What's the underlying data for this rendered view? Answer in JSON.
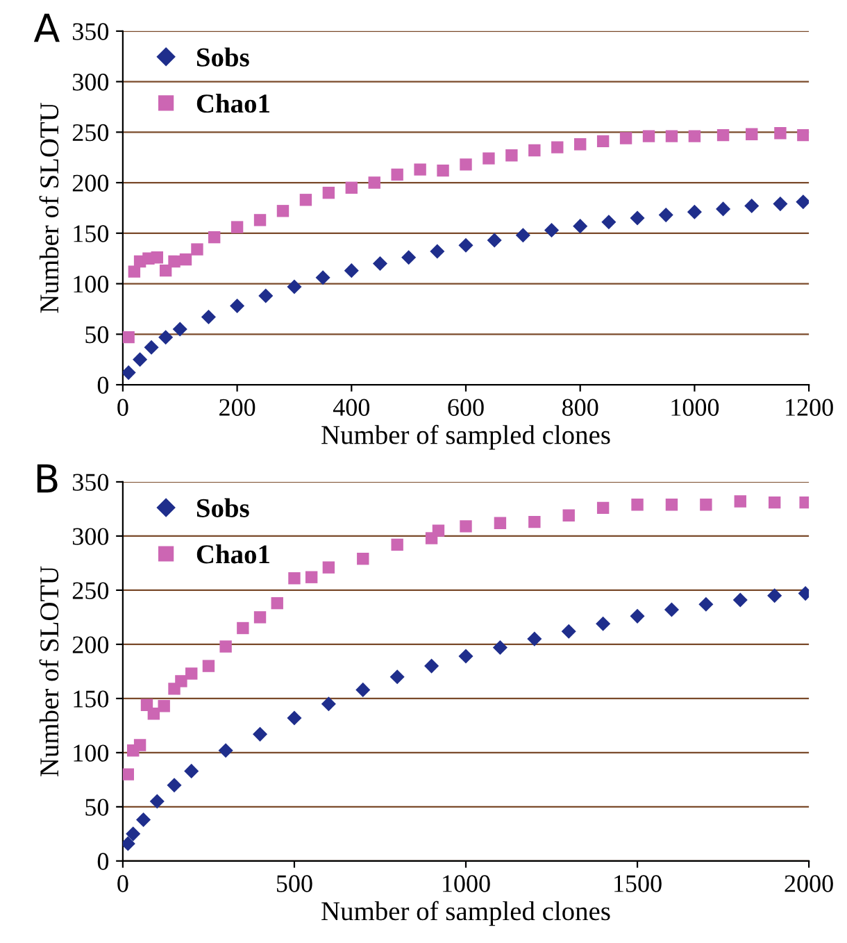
{
  "chart_data": [
    {
      "type": "scatter",
      "title": "A",
      "xlabel": "Number of sampled clones",
      "ylabel": "Number of SLOTU",
      "xlim": [
        0,
        1200
      ],
      "ylim": [
        0,
        350
      ],
      "xticks": [
        0,
        200,
        400,
        600,
        800,
        1000,
        1200
      ],
      "yticks": [
        0,
        50,
        100,
        150,
        200,
        250,
        300,
        350
      ],
      "grid": "y",
      "legend": "top left",
      "series": [
        {
          "name": "Sobs",
          "color": "#1f2e8c",
          "marker": "diamond",
          "x": [
            10,
            30,
            50,
            75,
            100,
            150,
            200,
            250,
            300,
            350,
            400,
            450,
            500,
            550,
            600,
            650,
            700,
            750,
            800,
            850,
            900,
            950,
            1000,
            1050,
            1100,
            1150,
            1190
          ],
          "values": [
            12,
            25,
            37,
            47,
            55,
            67,
            78,
            88,
            97,
            106,
            113,
            120,
            126,
            132,
            138,
            143,
            148,
            153,
            157,
            161,
            165,
            168,
            171,
            174,
            177,
            179,
            181
          ]
        },
        {
          "name": "Chao1",
          "color": "#cc66b3",
          "marker": "square",
          "x": [
            10,
            20,
            30,
            45,
            60,
            75,
            90,
            110,
            130,
            160,
            200,
            240,
            280,
            320,
            360,
            400,
            440,
            480,
            520,
            560,
            600,
            640,
            680,
            720,
            760,
            800,
            840,
            880,
            920,
            960,
            1000,
            1050,
            1100,
            1150,
            1190
          ],
          "values": [
            47,
            112,
            122,
            125,
            126,
            113,
            122,
            124,
            134,
            146,
            156,
            163,
            172,
            183,
            190,
            195,
            200,
            208,
            213,
            212,
            218,
            224,
            227,
            232,
            235,
            238,
            241,
            244,
            246,
            246,
            246,
            247,
            248,
            249,
            247
          ]
        }
      ]
    },
    {
      "type": "scatter",
      "title": "B",
      "xlabel": "Number of sampled clones",
      "ylabel": "Number of SLOTU",
      "xlim": [
        0,
        2000
      ],
      "ylim": [
        0,
        350
      ],
      "xticks": [
        0,
        500,
        1000,
        1500,
        2000
      ],
      "yticks": [
        0,
        50,
        100,
        150,
        200,
        250,
        300,
        350
      ],
      "grid": "y",
      "legend": "top left",
      "series": [
        {
          "name": "Sobs",
          "color": "#1f2e8c",
          "marker": "diamond",
          "x": [
            15,
            30,
            60,
            100,
            150,
            200,
            300,
            400,
            500,
            600,
            700,
            800,
            900,
            1000,
            1100,
            1200,
            1300,
            1400,
            1500,
            1600,
            1700,
            1800,
            1900,
            1990
          ],
          "values": [
            16,
            25,
            38,
            55,
            70,
            83,
            102,
            117,
            132,
            145,
            158,
            170,
            180,
            189,
            197,
            205,
            212,
            219,
            226,
            232,
            237,
            241,
            245,
            247
          ]
        },
        {
          "name": "Chao1",
          "color": "#cc66b3",
          "marker": "square",
          "x": [
            15,
            30,
            50,
            70,
            90,
            120,
            150,
            170,
            200,
            250,
            300,
            350,
            400,
            450,
            500,
            550,
            600,
            700,
            800,
            900,
            920,
            1000,
            1100,
            1200,
            1300,
            1400,
            1500,
            1600,
            1700,
            1800,
            1900,
            1990
          ],
          "values": [
            80,
            102,
            107,
            144,
            136,
            143,
            159,
            166,
            173,
            180,
            198,
            215,
            225,
            238,
            261,
            262,
            271,
            279,
            292,
            298,
            305,
            309,
            312,
            313,
            319,
            326,
            329,
            329,
            329,
            332,
            331,
            331
          ]
        }
      ]
    }
  ]
}
